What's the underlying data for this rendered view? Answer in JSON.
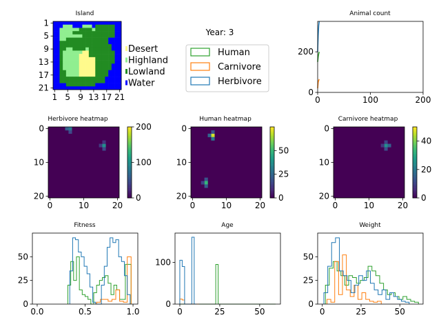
{
  "year_label": "Year: 3",
  "legend": {
    "entries": [
      {
        "name": "Human",
        "color": "#2ca02c"
      },
      {
        "name": "Carnivore",
        "color": "#ff7f0e"
      },
      {
        "name": "Herbivore",
        "color": "#1f77b4"
      }
    ],
    "placement": "center"
  },
  "island_legend": [
    {
      "name": "Desert",
      "color": "#fffa8c"
    },
    {
      "name": "Highland",
      "color": "#90ee90"
    },
    {
      "name": "Lowland",
      "color": "#228b22"
    },
    {
      "name": "Water",
      "color": "#0000ff"
    }
  ],
  "chart_data": [
    {
      "type": "heatmap",
      "title": "Island",
      "xticks": [
        "1",
        "5",
        "9",
        "13",
        "17",
        "21"
      ],
      "yticks": [
        "1",
        "5",
        "9",
        "13",
        "17",
        "21"
      ],
      "map_rows": [
        "WWWWWWWWWWWWWWWWWWWWW",
        "WWWHHHWWWHHHWLLLLLLWW",
        "WWHHHHHHLLLLHLLLLLLWW",
        "WWHHHHLLLLLLLLLLLLLWW",
        "WWHHHHHHHLLLLLLLLLLWW",
        "WWHHLLLLLLLLLLLLLWWWW",
        "WWLLLLLLLLLLLLLLLWWWW",
        "WWLLLLLLLLLLLLLLLLWWW",
        "WWLLHHLLLLHLLLLLLLWWW",
        "WWLHHHHHHDDLLLLLLLLWW",
        "WWLHHHHHDDDLLLLLLLLWW",
        "WWLHHHHHDDDDDLLLLLLWW",
        "WWLHHHHHDDDDDLLLLLLWW",
        "WWLHHHHHDDDDDLLLLLWWW",
        "WWLHHHHHDDDDDLLLLLWWW",
        "WWLLHHHHDDDDDLLLLWWWW",
        "WWLLHHHHDDDDDLLLLWWWW",
        "WWLLLLLLLLLLLLLLWWWWW",
        "WWLLLLLLLLLLLLLLWWWWW",
        "WWWWLLLLLLLLLWWWWWWWW",
        "WWWWWWWWWWWWWWWWWWWWW"
      ],
      "colors": {
        "W": "#0000ff",
        "H": "#90ee90",
        "L": "#228b22",
        "D": "#fffa8c"
      }
    },
    {
      "type": "line",
      "title": "Animal count",
      "xlim": [
        0,
        200
      ],
      "ylim": [
        0,
        350
      ],
      "xticks": [
        0,
        100,
        200
      ],
      "yticks": [
        0,
        200
      ],
      "series": [
        {
          "name": "Herbivore",
          "color": "#1f77b4",
          "x": [
            0,
            1,
            2,
            3
          ],
          "y": [
            200,
            280,
            330,
            350
          ]
        },
        {
          "name": "Human",
          "color": "#2ca02c",
          "x": [
            0,
            1,
            2,
            3
          ],
          "y": [
            150,
            175,
            190,
            200
          ]
        },
        {
          "name": "Carnivore",
          "color": "#ff7f0e",
          "x": [
            0,
            1,
            2,
            3
          ],
          "y": [
            20,
            50,
            60,
            65
          ]
        }
      ]
    },
    {
      "type": "heatmap",
      "title": "Herbivore heatmap",
      "size": 21,
      "vmin": 0,
      "vmax": 200,
      "colorbar_ticks": [
        0,
        100,
        200
      ],
      "axis_ticks": [
        0,
        10,
        20
      ],
      "cells": [
        {
          "r": 0,
          "c": 5,
          "v": 60
        },
        {
          "r": 1,
          "c": 6,
          "v": 45
        },
        {
          "r": 0,
          "c": 6,
          "v": 80
        },
        {
          "r": 5,
          "c": 15,
          "v": 35
        },
        {
          "r": 5,
          "c": 16,
          "v": 100
        },
        {
          "r": 6,
          "c": 16,
          "v": 45
        },
        {
          "r": 4,
          "c": 16,
          "v": 30
        }
      ]
    },
    {
      "type": "heatmap",
      "title": "Human heatmap",
      "size": 21,
      "vmin": 0,
      "vmax": 75,
      "colorbar_ticks": [
        0,
        25,
        50
      ],
      "axis_ticks": [
        0,
        10,
        20
      ],
      "cells": [
        {
          "r": 2,
          "c": 6,
          "v": 70
        },
        {
          "r": 2,
          "c": 5,
          "v": 25
        },
        {
          "r": 3,
          "c": 6,
          "v": 30
        },
        {
          "r": 1,
          "c": 6,
          "v": 20
        },
        {
          "r": 15,
          "c": 4,
          "v": 20
        },
        {
          "r": 16,
          "c": 4,
          "v": 50
        },
        {
          "r": 17,
          "c": 4,
          "v": 22
        },
        {
          "r": 16,
          "c": 3,
          "v": 15
        }
      ]
    },
    {
      "type": "heatmap",
      "title": "Carnivore heatmap",
      "size": 21,
      "vmin": 0,
      "vmax": 50,
      "colorbar_ticks": [
        0,
        20,
        40
      ],
      "axis_ticks": [
        0,
        10,
        20
      ],
      "cells": [
        {
          "r": 5,
          "c": 15,
          "v": 25
        },
        {
          "r": 5,
          "c": 16,
          "v": 15
        },
        {
          "r": 6,
          "c": 15,
          "v": 12
        },
        {
          "r": 4,
          "c": 15,
          "v": 10
        },
        {
          "r": 5,
          "c": 14,
          "v": 8
        }
      ]
    },
    {
      "type": "histogram",
      "title": "Fitness",
      "xlim": [
        -0.05,
        1.05
      ],
      "ylim": [
        0,
        75
      ],
      "xticks": [
        0.0,
        0.5,
        1.0
      ],
      "xtick_labels": [
        "0.0",
        "0.5",
        "1.0"
      ],
      "yticks": [
        0,
        25,
        50
      ],
      "series": [
        {
          "name": "Human",
          "color": "#2ca02c",
          "edges": [
            0.32,
            0.35,
            0.38,
            0.41,
            0.44,
            0.47,
            0.5,
            0.53,
            0.56,
            0.59,
            0.62,
            0.65,
            0.68,
            0.71,
            0.74,
            0.77,
            0.8,
            0.83,
            0.86,
            0.89,
            0.92,
            0.95,
            0.98
          ],
          "counts": [
            20,
            45,
            25,
            50,
            15,
            10,
            8,
            5,
            0,
            12,
            20,
            25,
            28,
            30,
            22,
            10,
            20,
            15,
            5,
            5,
            42,
            42
          ]
        },
        {
          "name": "Carnivore",
          "color": "#ff7f0e",
          "edges": [
            0.62,
            0.66,
            0.7,
            0.74,
            0.78,
            0.82,
            0.86,
            0.9,
            0.94,
            0.98
          ],
          "counts": [
            2,
            5,
            5,
            3,
            5,
            15,
            3,
            2,
            50
          ]
        },
        {
          "name": "Herbivore",
          "color": "#1f77b4",
          "edges": [
            0.34,
            0.37,
            0.4,
            0.43,
            0.46,
            0.49,
            0.52,
            0.55,
            0.58,
            0.61,
            0.64,
            0.67,
            0.7,
            0.73,
            0.76,
            0.79,
            0.82,
            0.85,
            0.88,
            0.91,
            0.94,
            0.97
          ],
          "counts": [
            35,
            70,
            68,
            55,
            50,
            40,
            32,
            18,
            2,
            0,
            0,
            20,
            40,
            60,
            70,
            65,
            68,
            50,
            45,
            30,
            10
          ]
        }
      ]
    },
    {
      "type": "histogram",
      "title": "Age",
      "xlim": [
        -3,
        63
      ],
      "ylim": [
        0,
        170
      ],
      "xticks": [
        0,
        25,
        50
      ],
      "xtick_labels": [
        "0",
        "25",
        "50"
      ],
      "yticks": [
        0,
        100
      ],
      "series": [
        {
          "name": "Human",
          "color": "#2ca02c",
          "edges": [
            0,
            1.5,
            3,
            4.5,
            6,
            7.5,
            9,
            10.5,
            12,
            13.5,
            15,
            16.5,
            18,
            19.5,
            21,
            22.5,
            24,
            25.5,
            27,
            28.5,
            30,
            31.5,
            33,
            34.5,
            36,
            37.5,
            39,
            40.5,
            42,
            43.5,
            45,
            46.5,
            48,
            49.5,
            51,
            52.5,
            54,
            55.5,
            57,
            58.5,
            60
          ],
          "counts": [
            0,
            0,
            0,
            0,
            0,
            0,
            0,
            0,
            0,
            0,
            0,
            0,
            0,
            0,
            0,
            95,
            0,
            0,
            0,
            0,
            0,
            0,
            0,
            0,
            0,
            0,
            0,
            0,
            0,
            0,
            0,
            0,
            0,
            0,
            0,
            0,
            0,
            0,
            0,
            0
          ]
        },
        {
          "name": "Carnivore",
          "color": "#ff7f0e",
          "edges": [
            0,
            1.5,
            3,
            4.5,
            6,
            7.5,
            9,
            10.5,
            12
          ],
          "counts": [
            12,
            10,
            0,
            0,
            0,
            0,
            0,
            0
          ]
        },
        {
          "name": "Herbivore",
          "color": "#1f77b4",
          "edges": [
            0,
            1.5,
            3,
            4.5,
            6,
            7.5,
            9,
            10.5
          ],
          "counts": [
            105,
            90,
            0,
            0,
            0,
            160,
            0
          ]
        }
      ]
    },
    {
      "type": "histogram",
      "title": "Weight",
      "xlim": [
        -3,
        65
      ],
      "ylim": [
        0,
        75
      ],
      "xticks": [
        0,
        25,
        50
      ],
      "xtick_labels": [
        "0",
        "25",
        "50"
      ],
      "yticks": [
        0,
        25,
        50
      ],
      "series": [
        {
          "name": "Human",
          "color": "#2ca02c",
          "edges": [
            2,
            4.5,
            7,
            9.5,
            12,
            14.5,
            17,
            19.5,
            22,
            24.5,
            27,
            29.5,
            32,
            34.5,
            37,
            39.5,
            42,
            44.5,
            47,
            49.5,
            52,
            54.5,
            57,
            59.5,
            62
          ],
          "counts": [
            20,
            38,
            45,
            35,
            30,
            20,
            30,
            28,
            22,
            25,
            28,
            40,
            35,
            30,
            22,
            15,
            10,
            12,
            8,
            5,
            8,
            5,
            3,
            2
          ]
        },
        {
          "name": "Carnivore",
          "color": "#ff7f0e",
          "edges": [
            3,
            5.5,
            8,
            10.5,
            13,
            15.5,
            18,
            20.5,
            23,
            25.5,
            28,
            30.5,
            33,
            35.5,
            38
          ],
          "counts": [
            5,
            2,
            45,
            10,
            52,
            15,
            8,
            20,
            5,
            12,
            5,
            3,
            2,
            3
          ]
        },
        {
          "name": "Herbivore",
          "color": "#1f77b4",
          "edges": [
            1,
            3.5,
            6,
            8.5,
            11,
            13.5,
            16,
            18.5,
            21,
            23.5,
            26,
            28.5,
            31,
            33.5,
            36,
            38.5,
            41,
            43.5,
            46,
            48.5,
            51,
            53.5,
            56
          ],
          "counts": [
            12,
            40,
            65,
            70,
            35,
            30,
            25,
            12,
            20,
            30,
            25,
            35,
            22,
            15,
            10,
            15,
            5,
            12,
            8,
            5,
            3,
            2
          ]
        }
      ]
    }
  ]
}
